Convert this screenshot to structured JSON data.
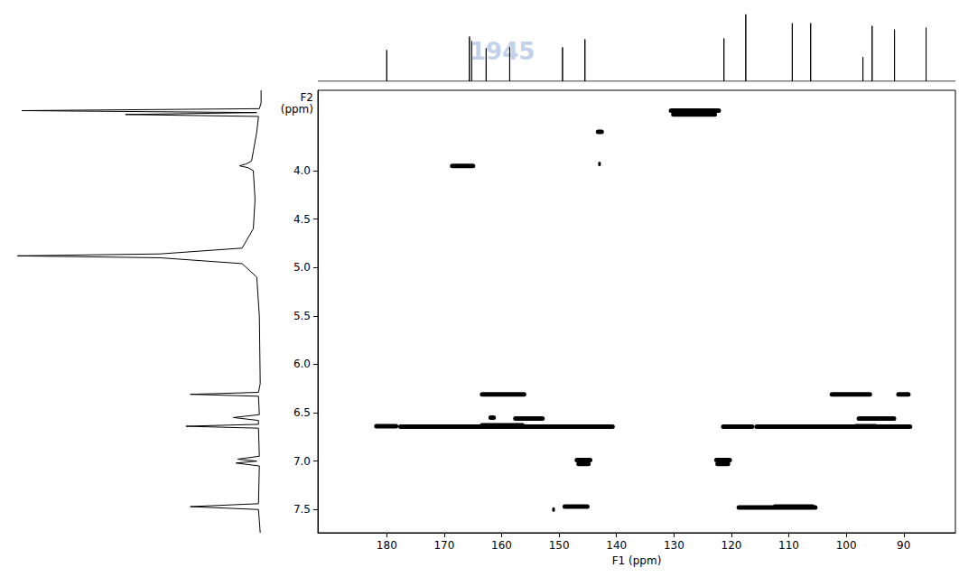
{
  "chart_data": {
    "type": "nmr_2d",
    "xlabel": "F1 (ppm)",
    "ylabel": "F2 (ppm)",
    "color": "#000000",
    "watermark": "1945",
    "xlim": [
      192,
      81
    ],
    "xticks": [
      180,
      170,
      160,
      150,
      140,
      130,
      120,
      110,
      100,
      90
    ],
    "ylim": [
      7.74,
      3.17
    ],
    "yticks": [
      {
        "value": 4,
        "label": "4.0"
      },
      4.5,
      {
        "value": 5,
        "label": "5.0"
      },
      5.5,
      {
        "value": 6,
        "label": "6.0"
      },
      6.5,
      {
        "value": 7,
        "label": "7.0"
      },
      7.5
    ],
    "cross_peaks": [
      {
        "x_from": 130.9,
        "x_to": 121.8,
        "y": 3.38
      },
      {
        "x_from": 130.5,
        "x_to": 122.5,
        "y": 3.42
      },
      {
        "x_from": 143.6,
        "x_to": 142.2,
        "y": 3.6
      },
      {
        "x_from": 143.2,
        "x_to": 142.9,
        "y": 3.93
      },
      {
        "x_from": 169.0,
        "x_to": 164.6,
        "y": 3.95
      },
      {
        "x_from": 163.8,
        "x_to": 155.7,
        "y": 6.31
      },
      {
        "x_from": 102.9,
        "x_to": 95.5,
        "y": 6.31
      },
      {
        "x_from": 91.3,
        "x_to": 88.8,
        "y": 6.31
      },
      {
        "x_from": 162.3,
        "x_to": 161.0,
        "y": 6.55
      },
      {
        "x_from": 158.0,
        "x_to": 152.5,
        "y": 6.56
      },
      {
        "x_from": 98.2,
        "x_to": 91.3,
        "y": 6.56
      },
      {
        "x_from": 182.2,
        "x_to": 178.0,
        "y": 6.64
      },
      {
        "x_from": 178.0,
        "x_to": 140.3,
        "y": 6.645
      },
      {
        "x_from": 163.8,
        "x_to": 156.0,
        "y": 6.63
      },
      {
        "x_from": 121.8,
        "x_to": 116.0,
        "y": 6.645
      },
      {
        "x_from": 116.0,
        "x_to": 88.5,
        "y": 6.645
      },
      {
        "x_from": 98.7,
        "x_to": 94.5,
        "y": 6.64
      },
      {
        "x_from": 147.3,
        "x_to": 144.2,
        "y": 6.99
      },
      {
        "x_from": 147.0,
        "x_to": 144.5,
        "y": 7.03
      },
      {
        "x_from": 123.0,
        "x_to": 119.9,
        "y": 6.99
      },
      {
        "x_from": 122.8,
        "x_to": 120.2,
        "y": 7.03
      },
      {
        "x_from": 149.4,
        "x_to": 144.7,
        "y": 7.47
      },
      {
        "x_from": 151.2,
        "x_to": 150.8,
        "y": 7.5
      },
      {
        "x_from": 119.1,
        "x_to": 105.0,
        "y": 7.48
      },
      {
        "x_from": 112.8,
        "x_to": 105.5,
        "y": 7.47
      }
    ],
    "top_spectrum": {
      "intensity_lim": [
        0,
        85
      ],
      "peaks": [
        {
          "x": 180.0,
          "height": 35
        },
        {
          "x": 165.6,
          "height": 50
        },
        {
          "x": 165.2,
          "height": 45
        },
        {
          "x": 162.7,
          "height": 37
        },
        {
          "x": 158.6,
          "height": 38
        },
        {
          "x": 149.4,
          "height": 38
        },
        {
          "x": 145.5,
          "height": 47
        },
        {
          "x": 121.3,
          "height": 48
        },
        {
          "x": 117.5,
          "height": 75
        },
        {
          "x": 109.4,
          "height": 65
        },
        {
          "x": 106.2,
          "height": 65
        },
        {
          "x": 97.1,
          "height": 27
        },
        {
          "x": 95.5,
          "height": 62
        },
        {
          "x": 91.6,
          "height": 58
        },
        {
          "x": 86.1,
          "height": 60
        }
      ]
    },
    "left_spectrum": {
      "intensity_lim": [
        0,
        300
      ],
      "points": [
        [
          3.17,
          3
        ],
        [
          3.3,
          3
        ],
        [
          3.36,
          5
        ],
        [
          3.38,
          280
        ],
        [
          3.4,
          8
        ],
        [
          3.42,
          160
        ],
        [
          3.44,
          6
        ],
        [
          3.6,
          8
        ],
        [
          3.8,
          12
        ],
        [
          3.9,
          14
        ],
        [
          3.93,
          20
        ],
        [
          3.95,
          28
        ],
        [
          3.97,
          18
        ],
        [
          4.0,
          12
        ],
        [
          4.3,
          10
        ],
        [
          4.6,
          12
        ],
        [
          4.8,
          25
        ],
        [
          4.86,
          120
        ],
        [
          4.88,
          285
        ],
        [
          4.9,
          120
        ],
        [
          4.96,
          25
        ],
        [
          5.1,
          8
        ],
        [
          5.5,
          5
        ],
        [
          6.2,
          4
        ],
        [
          6.29,
          6
        ],
        [
          6.31,
          85
        ],
        [
          6.33,
          6
        ],
        [
          6.52,
          5
        ],
        [
          6.55,
          35
        ],
        [
          6.58,
          6
        ],
        [
          6.62,
          6
        ],
        [
          6.64,
          90
        ],
        [
          6.66,
          6
        ],
        [
          6.95,
          5
        ],
        [
          6.98,
          30
        ],
        [
          7.0,
          8
        ],
        [
          7.02,
          32
        ],
        [
          7.05,
          5
        ],
        [
          7.44,
          6
        ],
        [
          7.47,
          85
        ],
        [
          7.5,
          6
        ],
        [
          7.74,
          4
        ]
      ]
    }
  }
}
